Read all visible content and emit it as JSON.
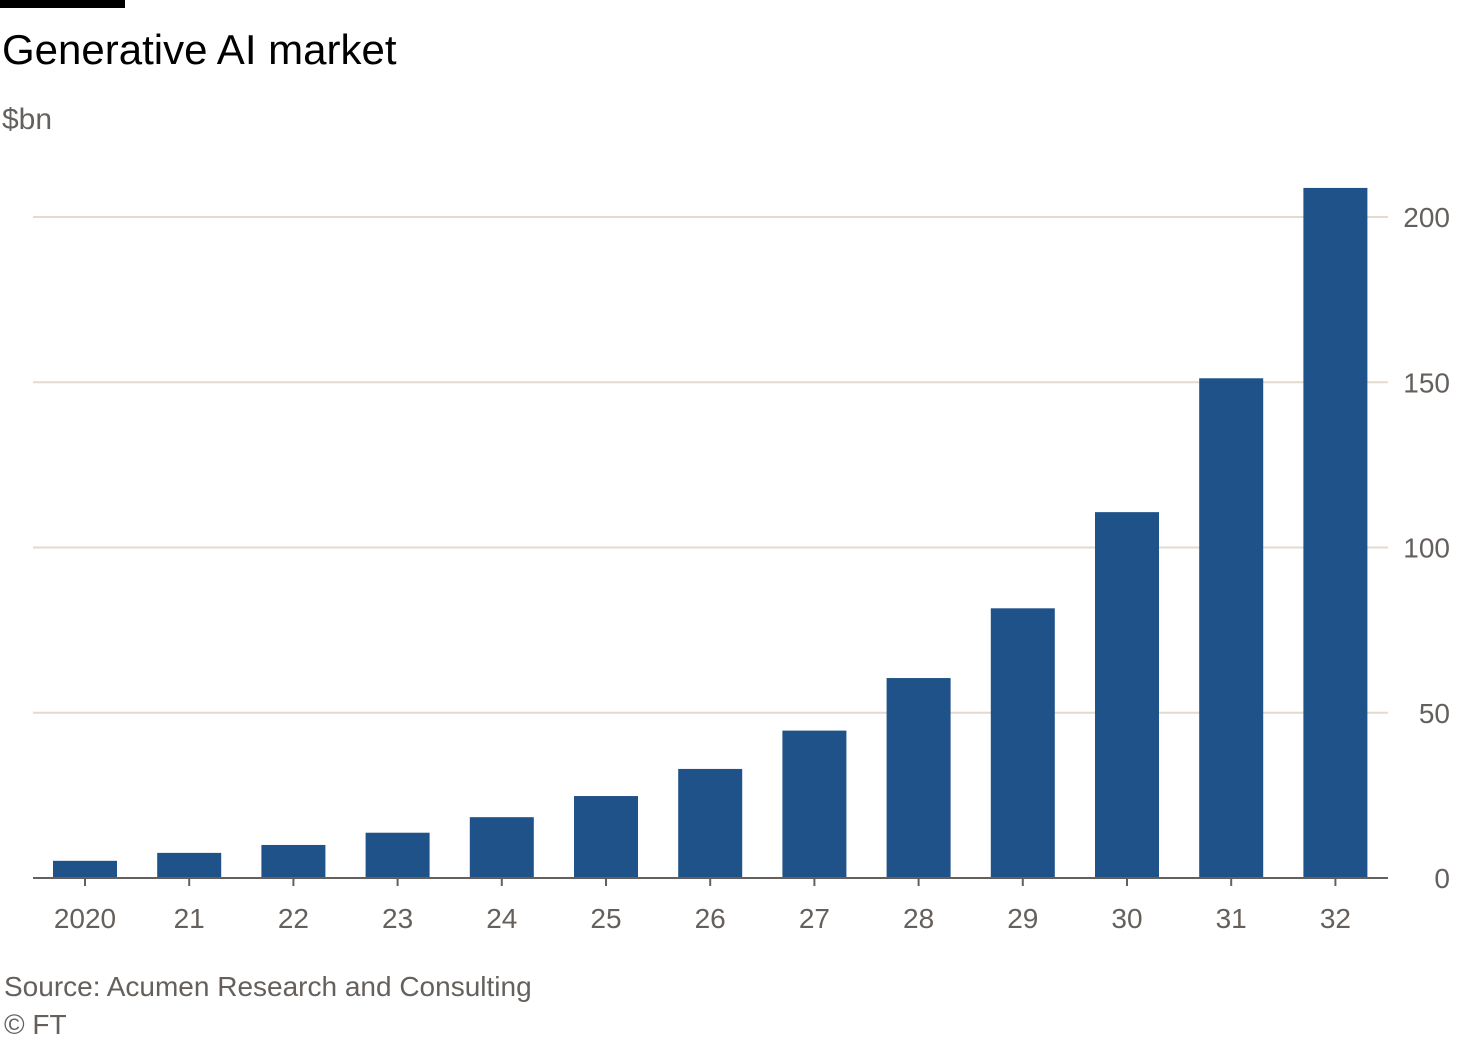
{
  "header": {
    "title": "Generative AI market",
    "unit": "$bn"
  },
  "footer": {
    "source": "Source: Acumen Research and Consulting",
    "credit": "© FT"
  },
  "colors": {
    "bar": "#1f5289",
    "grid": "#e6d9ce",
    "baseline": "#66605c",
    "tick_text": "#66605c"
  },
  "chart_data": {
    "type": "bar",
    "title": "Generative AI market",
    "ylabel": "$bn",
    "categories": [
      "2020",
      "21",
      "22",
      "23",
      "24",
      "25",
      "26",
      "27",
      "28",
      "29",
      "30",
      "31",
      "32"
    ],
    "values": [
      5.2,
      7.6,
      10,
      13.7,
      18.4,
      24.8,
      33,
      44.6,
      60.5,
      81.6,
      110.7,
      151.2,
      208.8
    ],
    "ylim": [
      0,
      200
    ],
    "yticks": [
      "0",
      "50",
      "100",
      "150",
      "200"
    ],
    "grid": true,
    "y_axis_position": "right"
  }
}
